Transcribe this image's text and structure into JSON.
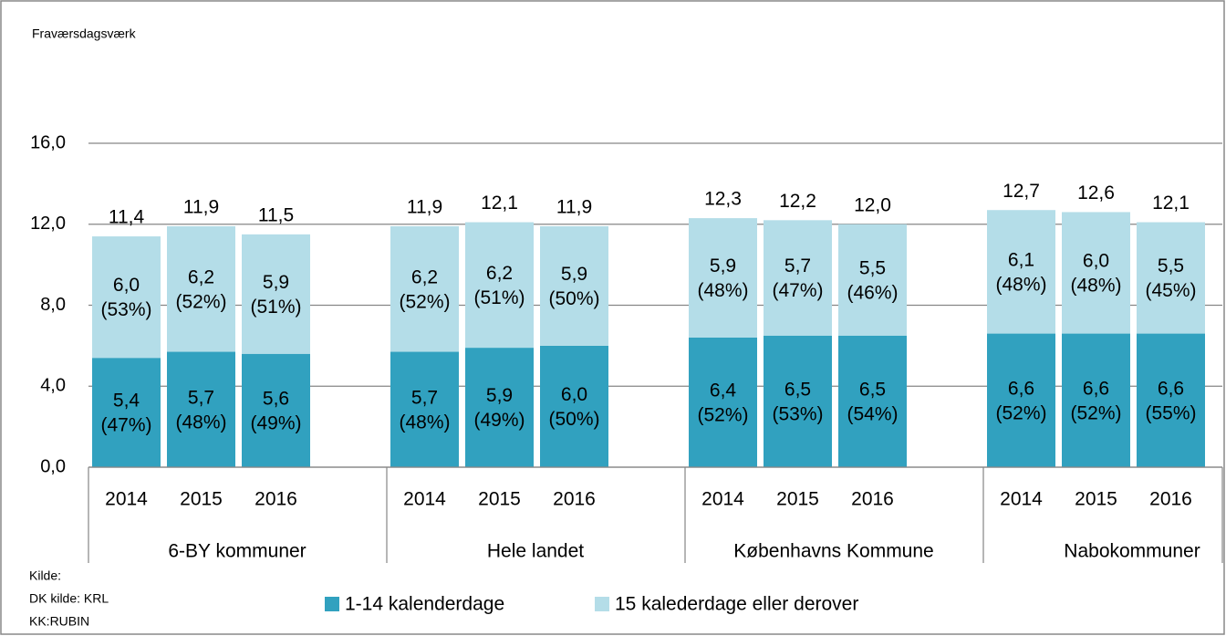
{
  "chart_data": {
    "type": "stacked-bar",
    "y_title": "Fraværsdagsværk",
    "categories": [
      "2014",
      "2015",
      "2016",
      "2014",
      "2015",
      "2016",
      "2014",
      "2015",
      "2016",
      "2014",
      "2015",
      "2016"
    ],
    "groups": [
      "6-BY kommuner",
      "Hele landet",
      "Københavns Kommune",
      "Nabokommuner"
    ],
    "series": [
      {
        "name": "1-14 kalenderdage",
        "color": "#31a1bf",
        "values": [
          5.4,
          5.7,
          5.6,
          5.7,
          5.9,
          6.0,
          6.4,
          6.5,
          6.5,
          6.6,
          6.6,
          6.6
        ],
        "value_labels": [
          "5,4",
          "5,7",
          "5,6",
          "5,7",
          "5,9",
          "6,0",
          "6,4",
          "6,5",
          "6,5",
          "6,6",
          "6,6",
          "6,6"
        ],
        "share_labels": [
          "(47%)",
          "(48%)",
          "(49%)",
          "(48%)",
          "(49%)",
          "(50%)",
          "(52%)",
          "(53%)",
          "(54%)",
          "(52%)",
          "(52%)",
          "(55%)"
        ]
      },
      {
        "name": "15 kalederdage eller derover",
        "color": "#b4dde8",
        "values": [
          6.0,
          6.2,
          5.9,
          6.2,
          6.2,
          5.9,
          5.9,
          5.7,
          5.5,
          6.1,
          6.0,
          5.5
        ],
        "value_labels": [
          "6,0",
          "6,2",
          "5,9",
          "6,2",
          "6,2",
          "5,9",
          "5,9",
          "5,7",
          "5,5",
          "6,1",
          "6,0",
          "5,5"
        ],
        "share_labels": [
          "(53%)",
          "(52%)",
          "(51%)",
          "(52%)",
          "(51%)",
          "(50%)",
          "(48%)",
          "(47%)",
          "(46%)",
          "(48%)",
          "(48%)",
          "(45%)"
        ]
      }
    ],
    "totals": [
      11.4,
      11.9,
      11.5,
      11.9,
      12.1,
      11.9,
      12.3,
      12.2,
      12.0,
      12.7,
      12.6,
      12.1
    ],
    "total_labels": [
      "11,4",
      "11,9",
      "11,5",
      "11,9",
      "12,1",
      "11,9",
      "12,3",
      "12,2",
      "12,0",
      "12,7",
      "12,6",
      "12,1"
    ],
    "ylim": [
      0,
      16
    ],
    "yticks": [
      {
        "value": 0,
        "label": "0,0"
      },
      {
        "value": 4,
        "label": "4,0"
      },
      {
        "value": 8,
        "label": "8,0"
      },
      {
        "value": 12,
        "label": "12,0"
      },
      {
        "value": 16,
        "label": "16,0"
      }
    ],
    "grid": true,
    "legend": "bottom",
    "source": [
      "Kilde:",
      "DK kilde: KRL",
      "KK:RUBIN"
    ]
  }
}
